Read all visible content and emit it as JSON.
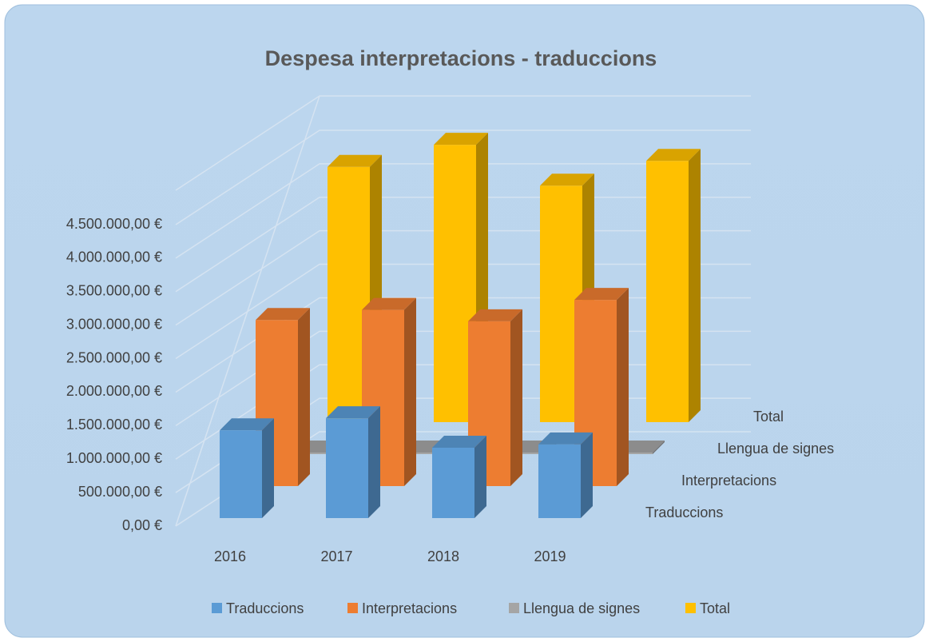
{
  "chart_data": {
    "type": "bar3d",
    "title": "Despesa interpretacions - traduccions",
    "categories": [
      "2016",
      "2017",
      "2018",
      "2019"
    ],
    "series": [
      {
        "name": "Traduccions",
        "color": "#5b9bd5",
        "values": [
          1310000,
          1490000,
          1050000,
          1100000
        ]
      },
      {
        "name": "Interpretacions",
        "color": "#ed7d31",
        "values": [
          2480000,
          2630000,
          2460000,
          2780000
        ]
      },
      {
        "name": "Llengua de signes",
        "color": "#a5a5a5",
        "values": [
          20000,
          20000,
          20000,
          20000
        ]
      },
      {
        "name": "Total",
        "color": "#ffc000",
        "values": [
          3810000,
          4140000,
          3530000,
          3900000
        ]
      }
    ],
    "ylim": [
      0,
      5000000
    ],
    "yticks": [
      {
        "value": 0,
        "label": "0,00 €"
      },
      {
        "value": 500000,
        "label": "500.000,00 €"
      },
      {
        "value": 1000000,
        "label": "1.000.000,00 €"
      },
      {
        "value": 1500000,
        "label": "1.500.000,00 €"
      },
      {
        "value": 2000000,
        "label": "2.000.000,00 €"
      },
      {
        "value": 2500000,
        "label": "2.500.000,00 €"
      },
      {
        "value": 3000000,
        "label": "3.000.000,00 €"
      },
      {
        "value": 3500000,
        "label": "3.500.000,00 €"
      },
      {
        "value": 4000000,
        "label": "4.000.000,00 €"
      },
      {
        "value": 4500000,
        "label": "4.500.000,00 €"
      }
    ],
    "grid": true,
    "legend": "bottom"
  }
}
